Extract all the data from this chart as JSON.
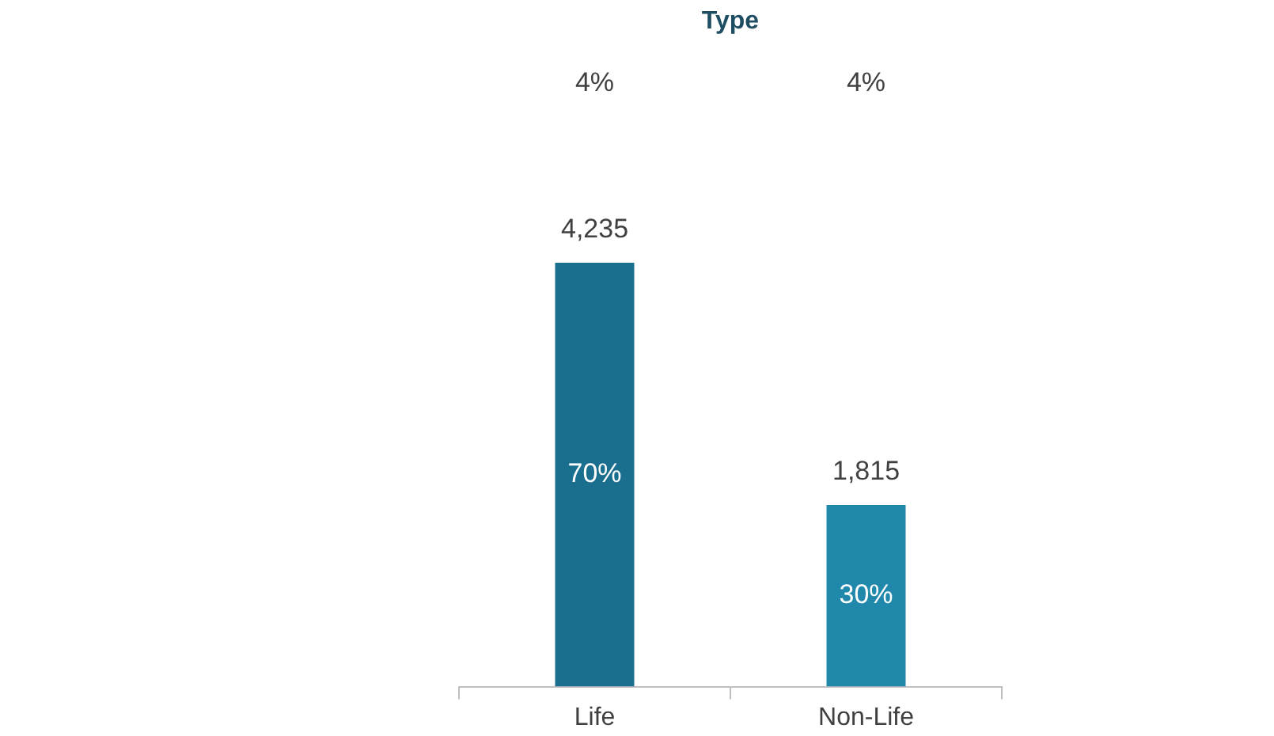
{
  "chart_data": {
    "type": "bar",
    "title": "Type",
    "categories": [
      "Life",
      "Non-Life"
    ],
    "values": [
      4235,
      1815
    ],
    "colors": [
      "#1a6e8e",
      "#2088ab"
    ],
    "value_labels": [
      "4,235",
      "1,815"
    ],
    "tick_labels": "x",
    "grid": false,
    "legend": false,
    "annotations": [
      "4%",
      "4%",
      "70%",
      "30%"
    ]
  }
}
